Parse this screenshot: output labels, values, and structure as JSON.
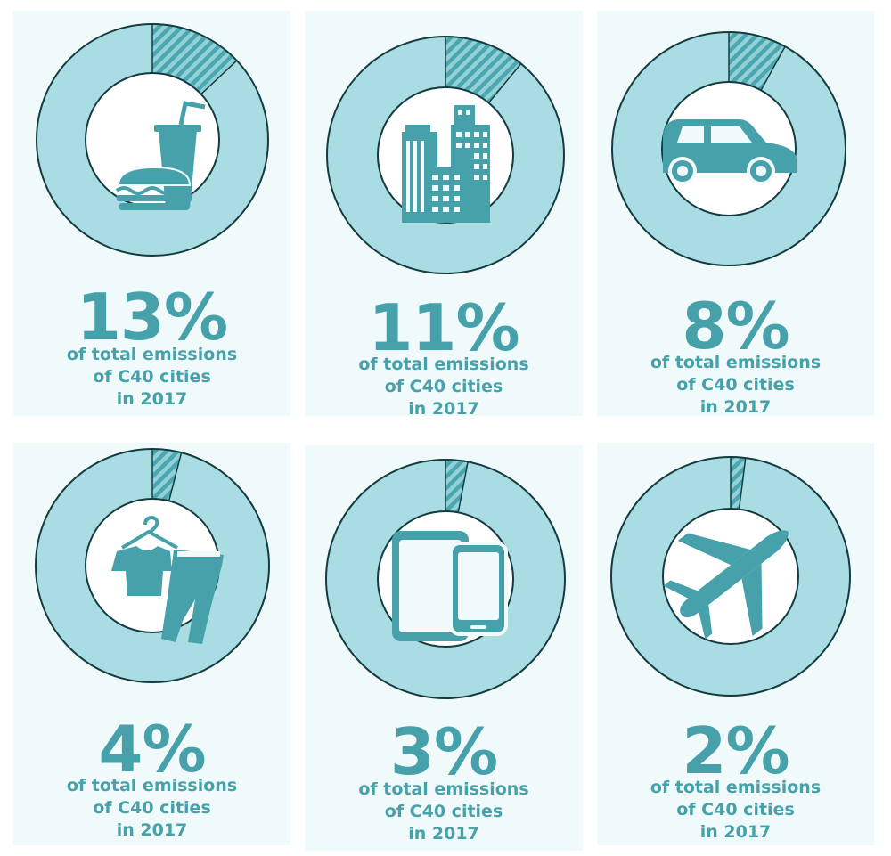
{
  "colors": {
    "ring": "#a9dde3",
    "ring_outline": "#143c40",
    "hatch_a": "#4aa7b1",
    "hatch_b": "#93d1d7",
    "icon": "#46a1ab",
    "text": "#46a1ab",
    "card_bg": "#f1fafa"
  },
  "chart_data": [
    {
      "type": "pie",
      "value": 13,
      "value_label": "13%",
      "caption": [
        "of total emissions",
        "of C40 cities",
        "in 2017"
      ],
      "icon": "fast-food-icon"
    },
    {
      "type": "pie",
      "value": 11,
      "value_label": "11%",
      "caption": [
        "of total emissions",
        "of C40 cities",
        "in 2017"
      ],
      "icon": "buildings-icon"
    },
    {
      "type": "pie",
      "value": 8,
      "value_label": "8%",
      "caption": [
        "of total emissions",
        "of C40 cities",
        "in 2017"
      ],
      "icon": "car-icon"
    },
    {
      "type": "pie",
      "value": 4,
      "value_label": "4%",
      "caption": [
        "of total emissions",
        "of C40 cities",
        "in 2017"
      ],
      "icon": "clothing-icon"
    },
    {
      "type": "pie",
      "value": 3,
      "value_label": "3%",
      "caption": [
        "of total emissions",
        "of C40 cities",
        "in 2017"
      ],
      "icon": "devices-icon"
    },
    {
      "type": "pie",
      "value": 2,
      "value_label": "2%",
      "caption": [
        "of total emissions",
        "of C40 cities",
        "in 2017"
      ],
      "icon": "airplane-icon"
    }
  ]
}
